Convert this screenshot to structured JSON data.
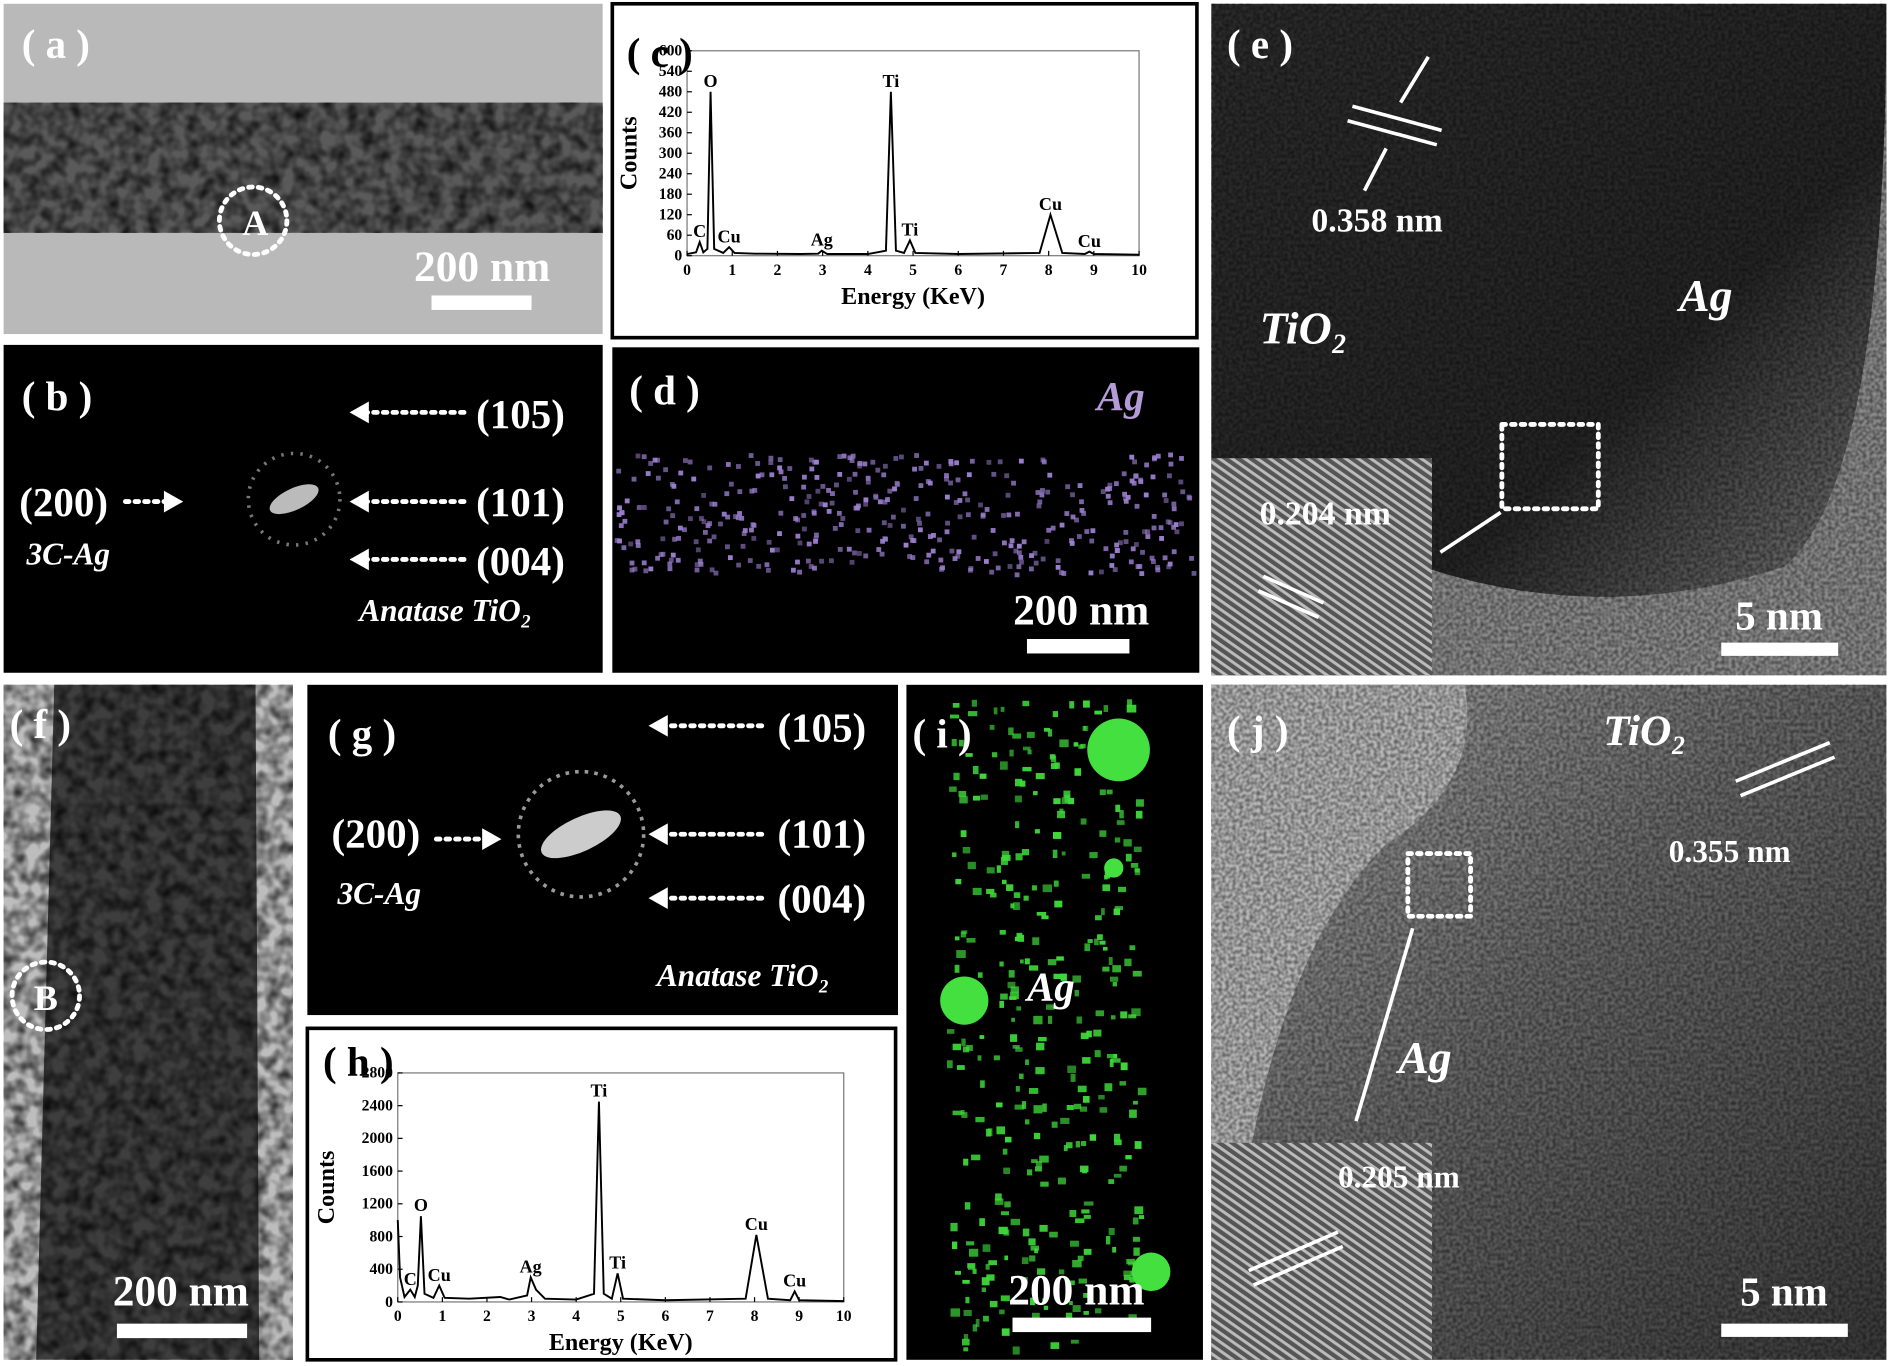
{
  "panels": [
    {
      "label": "( a )",
      "texts": [
        "A",
        "200 nm"
      ]
    },
    {
      "label": "( b )",
      "texts": [
        "(105)",
        "(200)",
        "(101)",
        "(004)",
        "3C-Ag",
        "Anatase TiO₂"
      ]
    },
    {
      "label": "( d )",
      "texts": [
        "Ag",
        "200 nm"
      ]
    },
    {
      "label": "( e )",
      "texts": [
        "0.358 nm",
        "TiO₂",
        "Ag",
        "0.204 nm",
        "5 nm"
      ]
    },
    {
      "label": "( f )",
      "texts": [
        "B",
        "200 nm"
      ]
    },
    {
      "label": "( g )",
      "texts": [
        "(105)",
        "(200)",
        "(101)",
        "(004)",
        "3C-Ag",
        "Anatase TiO₂"
      ]
    },
    {
      "label": "( i )",
      "texts": [
        "Ag",
        "200 nm"
      ]
    },
    {
      "label": "( j )",
      "texts": [
        "TiO₂",
        "0.355 nm",
        "Ag",
        "0.205 nm",
        "5 nm"
      ]
    }
  ],
  "chart_data": [
    {
      "type": "line",
      "label": "( c )",
      "x_label": "Energy (KeV)",
      "y_label": "Counts",
      "color": "#000000",
      "x": [
        0,
        0.2,
        0.28,
        0.36,
        0.45,
        0.52,
        0.6,
        0.8,
        0.93,
        1.05,
        1.5,
        2.5,
        2.9,
        2.98,
        3.1,
        4.0,
        4.4,
        4.51,
        4.62,
        4.8,
        4.93,
        5.05,
        6,
        7.8,
        8.04,
        8.3,
        8.8,
        8.9,
        9.0,
        10
      ],
      "values": [
        5,
        10,
        40,
        10,
        20,
        480,
        20,
        8,
        25,
        8,
        6,
        5,
        6,
        15,
        5,
        5,
        15,
        480,
        15,
        8,
        45,
        8,
        5,
        8,
        120,
        8,
        5,
        12,
        5,
        3
      ],
      "xlim": [
        0,
        10
      ],
      "xticks": [
        0,
        1,
        2,
        3,
        4,
        5,
        6,
        7,
        8,
        9,
        10
      ],
      "ylim": [
        0,
        600
      ],
      "yticks": [
        0,
        60,
        120,
        180,
        240,
        300,
        360,
        420,
        480,
        540,
        600
      ],
      "annotations": [
        {
          "text": "C",
          "x": 0.28
        },
        {
          "text": "O",
          "x": 0.52
        },
        {
          "text": "Cu",
          "x": 0.93
        },
        {
          "text": "Ag",
          "x": 2.98
        },
        {
          "text": "Ti",
          "x": 4.51
        },
        {
          "text": "Ti",
          "x": 4.93
        },
        {
          "text": "Cu",
          "x": 8.04
        },
        {
          "text": "Cu",
          "x": 8.9
        }
      ]
    },
    {
      "type": "line",
      "label": "( h )",
      "x_label": "Energy (KeV)",
      "y_label": "Counts",
      "color": "#000000",
      "x": [
        0,
        0.05,
        0.15,
        0.28,
        0.38,
        0.45,
        0.52,
        0.6,
        0.8,
        0.93,
        1.05,
        1.6,
        2.3,
        2.5,
        2.9,
        2.98,
        3.1,
        3.3,
        4.0,
        4.4,
        4.51,
        4.62,
        4.8,
        4.93,
        5.05,
        6,
        7.8,
        8.04,
        8.3,
        8.8,
        8.9,
        9.0,
        10
      ],
      "values": [
        1000,
        300,
        60,
        150,
        60,
        200,
        1050,
        100,
        50,
        200,
        50,
        40,
        60,
        30,
        80,
        300,
        150,
        40,
        30,
        100,
        2450,
        100,
        40,
        350,
        40,
        20,
        40,
        820,
        40,
        20,
        130,
        20,
        10
      ],
      "xlim": [
        0,
        10
      ],
      "xticks": [
        0,
        1,
        2,
        3,
        4,
        5,
        6,
        7,
        8,
        9,
        10
      ],
      "ylim": [
        0,
        2800
      ],
      "yticks": [
        0,
        400,
        800,
        1200,
        1600,
        2000,
        2400,
        2800
      ],
      "annotations": [
        {
          "text": "C",
          "x": 0.28
        },
        {
          "text": "O",
          "x": 0.52
        },
        {
          "text": "Cu",
          "x": 0.93
        },
        {
          "text": "Ag",
          "x": 2.98
        },
        {
          "text": "Ti",
          "x": 4.51
        },
        {
          "text": "Ti",
          "x": 4.93
        },
        {
          "text": "Cu",
          "x": 8.04
        },
        {
          "text": "Cu",
          "x": 8.9
        }
      ]
    }
  ]
}
